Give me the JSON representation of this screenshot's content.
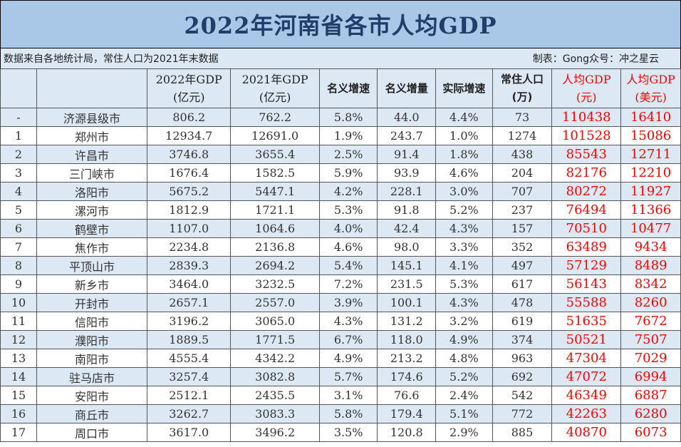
{
  "title": "2022年河南省各市人均GDP",
  "source_note": "数据来自各地统计局，常住人口为2021年末数据",
  "author_note": "制表：Gong众号：冲之星云",
  "columns": [
    {
      "line1": "",
      "line2": ""
    },
    {
      "line1": "",
      "line2": ""
    },
    {
      "line1": "2022年GDP",
      "line2": "(亿元)"
    },
    {
      "line1": "2021年GDP",
      "line2": "(亿元)"
    },
    {
      "line1": "名义增速",
      "line2": ""
    },
    {
      "line1": "名义增量",
      "line2": ""
    },
    {
      "line1": "实际增速",
      "line2": ""
    },
    {
      "line1": "常住人口",
      "line2": "(万)"
    },
    {
      "line1": "人均GDP",
      "line2": "(元)"
    },
    {
      "line1": "人均GDP",
      "line2": "(美元)"
    }
  ],
  "rows": [
    [
      "-",
      "济源县级市",
      "806.2",
      "762.2",
      "5.8%",
      "44.0",
      "4.4%",
      "73",
      "110438",
      "16410"
    ],
    [
      "1",
      "郑州市",
      "12934.7",
      "12691.0",
      "1.9%",
      "243.7",
      "1.0%",
      "1274",
      "101528",
      "15086"
    ],
    [
      "2",
      "许昌市",
      "3746.8",
      "3655.4",
      "2.5%",
      "91.4",
      "1.8%",
      "438",
      "85543",
      "12711"
    ],
    [
      "3",
      "三门峡市",
      "1676.4",
      "1582.5",
      "5.9%",
      "93.9",
      "4.6%",
      "204",
      "82176",
      "12210"
    ],
    [
      "4",
      "洛阳市",
      "5675.2",
      "5447.1",
      "4.2%",
      "228.1",
      "3.0%",
      "707",
      "80272",
      "11927"
    ],
    [
      "5",
      "漯河市",
      "1812.9",
      "1721.1",
      "5.3%",
      "91.8",
      "5.2%",
      "237",
      "76494",
      "11366"
    ],
    [
      "6",
      "鹤壁市",
      "1107.0",
      "1064.6",
      "4.0%",
      "42.4",
      "4.3%",
      "157",
      "70510",
      "10477"
    ],
    [
      "7",
      "焦作市",
      "2234.8",
      "2136.8",
      "4.6%",
      "98.0",
      "3.3%",
      "352",
      "63489",
      "9434"
    ],
    [
      "8",
      "平顶山市",
      "2839.3",
      "2694.2",
      "5.4%",
      "145.1",
      "4.1%",
      "497",
      "57129",
      "8489"
    ],
    [
      "9",
      "新乡市",
      "3464.0",
      "3232.5",
      "7.2%",
      "231.5",
      "5.3%",
      "617",
      "56143",
      "8342"
    ],
    [
      "10",
      "开封市",
      "2657.1",
      "2557.0",
      "3.9%",
      "100.1",
      "4.3%",
      "478",
      "55588",
      "8260"
    ],
    [
      "11",
      "信阳市",
      "3196.2",
      "3065.0",
      "4.3%",
      "131.2",
      "3.2%",
      "619",
      "51635",
      "7672"
    ],
    [
      "12",
      "濮阳市",
      "1889.5",
      "1771.5",
      "6.7%",
      "118.0",
      "4.9%",
      "374",
      "50521",
      "7507"
    ],
    [
      "13",
      "南阳市",
      "4555.4",
      "4342.2",
      "4.9%",
      "213.2",
      "4.8%",
      "963",
      "47304",
      "7029"
    ],
    [
      "14",
      "驻马店市",
      "3257.4",
      "3082.8",
      "5.7%",
      "174.6",
      "5.2%",
      "692",
      "47072",
      "6994"
    ],
    [
      "15",
      "安阳市",
      "2512.1",
      "2435.5",
      "3.1%",
      "76.6",
      "2.4%",
      "542",
      "46349",
      "6887"
    ],
    [
      "16",
      "商丘市",
      "3262.7",
      "3083.3",
      "5.8%",
      "179.4",
      "5.1%",
      "772",
      "42263",
      "6280"
    ],
    [
      "17",
      "周口市",
      "3617.0",
      "3496.2",
      "3.5%",
      "120.8",
      "2.9%",
      "885",
      "40870",
      "6073"
    ]
  ],
  "colors": {
    "title_bg": "#a9c8e8",
    "title_text": "#1f3f6a",
    "stripe": "#dce8f4",
    "highlight": "#ff0000"
  }
}
